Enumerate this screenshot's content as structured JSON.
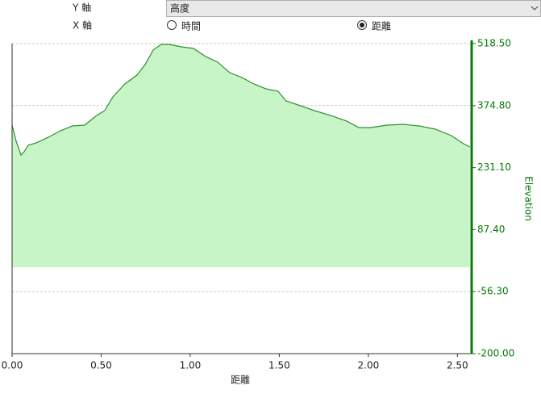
{
  "controls": {
    "y_axis_label": "Y 軸",
    "y_axis_value": "高度",
    "x_axis_label": "X 軸",
    "x_options": [
      {
        "label": "時間",
        "selected": false
      },
      {
        "label": "距離",
        "selected": true
      }
    ]
  },
  "chart_data": {
    "type": "area",
    "x_label": "距離",
    "y_label": "Elevation",
    "x": [
      0,
      0.023,
      0.05,
      0.068,
      0.09,
      0.136,
      0.204,
      0.271,
      0.339,
      0.407,
      0.475,
      0.52,
      0.566,
      0.633,
      0.701,
      0.747,
      0.792,
      0.837,
      0.882,
      0.95,
      1.018,
      1.086,
      1.154,
      1.222,
      1.29,
      1.357,
      1.425,
      1.493,
      1.538,
      1.606,
      1.697,
      1.787,
      1.878,
      1.946,
      2.014,
      2.104,
      2.195,
      2.285,
      2.376,
      2.466,
      2.534,
      2.57
    ],
    "series": [
      {
        "name": "Elevation",
        "color": "#2f8f2f",
        "fill": "#c8f5c8",
        "values": [
          329.5,
          292,
          260.3,
          268,
          283,
          288.4,
          301.5,
          316.4,
          327.7,
          329.5,
          352,
          363.2,
          395,
          425,
          445.5,
          470,
          503.5,
          516.6,
          516.6,
          511,
          507.3,
          488.6,
          475.5,
          451.1,
          440,
          425,
          413.7,
          408.1,
          385.7,
          376.3,
          363.2,
          352,
          338.9,
          323.9,
          323.9,
          329.5,
          331.4,
          327.7,
          320.2,
          305.2,
          286.5,
          279
        ]
      }
    ],
    "xlim": [
      0,
      2.58
    ],
    "ylim": [
      -200,
      518.5
    ],
    "xticks": [
      {
        "value": 0,
        "label": "0.00"
      },
      {
        "value": 0.5,
        "label": "0.50"
      },
      {
        "value": 1,
        "label": "1.00"
      },
      {
        "value": 1.5,
        "label": "1.50"
      },
      {
        "value": 2,
        "label": "2.00"
      },
      {
        "value": 2.5,
        "label": "2.50"
      }
    ],
    "yticks": [
      {
        "value": -200,
        "label": "-200.00"
      },
      {
        "value": -56.3,
        "label": "-56.30"
      },
      {
        "value": 87.4,
        "label": "87.40"
      },
      {
        "value": 231.1,
        "label": "231.10"
      },
      {
        "value": 374.8,
        "label": "374.80"
      },
      {
        "value": 518.5,
        "label": "518.50"
      }
    ],
    "axis_color": "#0a7a0a",
    "grid": true
  }
}
